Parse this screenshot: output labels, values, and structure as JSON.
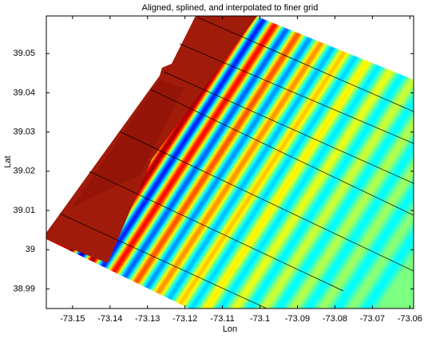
{
  "chart_data": {
    "type": "map",
    "title": "Aligned, splined, and interpolated to finer grid",
    "x_label": "Lon",
    "y_label": "Lat",
    "xlim": [
      -73.157,
      -73.059
    ],
    "xticks": [
      -73.15,
      -73.14,
      -73.13,
      -73.12,
      -73.11,
      -73.1,
      -73.09,
      -73.08,
      -73.07,
      -73.06
    ],
    "ylim": [
      38.985,
      39.0596
    ],
    "yticks": [
      38.99,
      39,
      39.01,
      39.02,
      39.03,
      39.04,
      39.05
    ]
  }
}
